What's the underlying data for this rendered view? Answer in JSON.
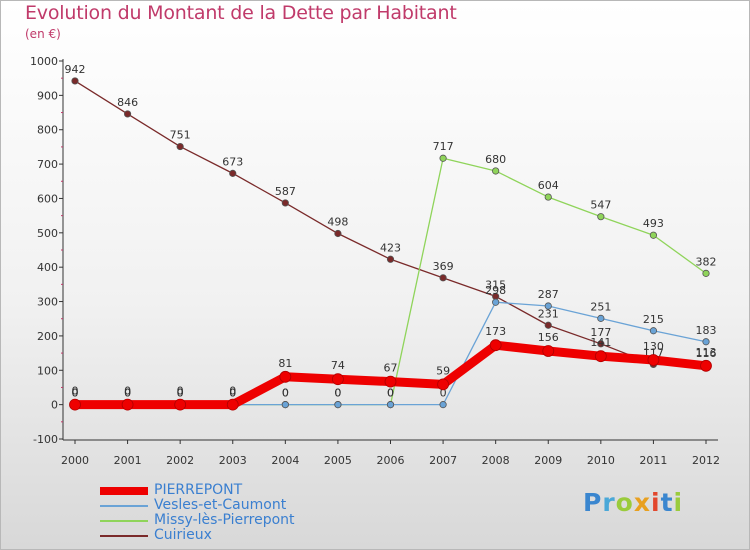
{
  "header": {
    "title": "Evolution du Montant de la Dette par Habitant",
    "unit": "(en €)"
  },
  "colors": {
    "title": "#c03a6a",
    "legend_text": "#3a7fd0"
  },
  "logo": {
    "text": "Proxiti",
    "letters": [
      {
        "ch": "P",
        "color": "#3a86cf"
      },
      {
        "ch": "r",
        "color": "#4aa8d8"
      },
      {
        "ch": "o",
        "color": "#9acb3c"
      },
      {
        "ch": "x",
        "color": "#e8a020"
      },
      {
        "ch": "i",
        "color": "#e2472d"
      },
      {
        "ch": "t",
        "color": "#3a86cf"
      },
      {
        "ch": "i",
        "color": "#9acb3c"
      }
    ]
  },
  "chart_data": {
    "type": "line",
    "title": "Evolution du Montant de la Dette par Habitant",
    "ylabel": "(en €)",
    "ylim": [
      -100,
      1000
    ],
    "yticks": [
      -100,
      0,
      100,
      200,
      300,
      400,
      500,
      600,
      700,
      800,
      900,
      1000
    ],
    "grid": false,
    "legend_position": "bottom-left",
    "categories": [
      "2000",
      "2001",
      "2002",
      "2003",
      "2004",
      "2005",
      "2006",
      "2007",
      "2008",
      "2009",
      "2010",
      "2011",
      "2012"
    ],
    "series": [
      {
        "name": "Cuirieux",
        "color": "#7a2a2a",
        "values": [
          942,
          846,
          751,
          673,
          587,
          498,
          423,
          369,
          315,
          231,
          177,
          117,
          116
        ]
      },
      {
        "name": "Missy-lès-Pierrepont",
        "color": "#8fd45a",
        "values": [
          0,
          0,
          0,
          0,
          0,
          0,
          0,
          717,
          680,
          604,
          547,
          493,
          382
        ]
      },
      {
        "name": "Vesles-et-Caumont",
        "color": "#6aa3d6",
        "values": [
          0,
          0,
          0,
          0,
          0,
          0,
          0,
          0,
          298,
          287,
          251,
          215,
          183
        ]
      },
      {
        "name": "PIERREPONT",
        "color": "#ee0000",
        "values": [
          0,
          0,
          0,
          0,
          81,
          74,
          67,
          59,
          173,
          156,
          141,
          130,
          113
        ]
      }
    ],
    "legend_order": [
      "PIERREPONT",
      "Vesles-et-Caumont",
      "Missy-lès-Pierrepont",
      "Cuirieux"
    ]
  }
}
